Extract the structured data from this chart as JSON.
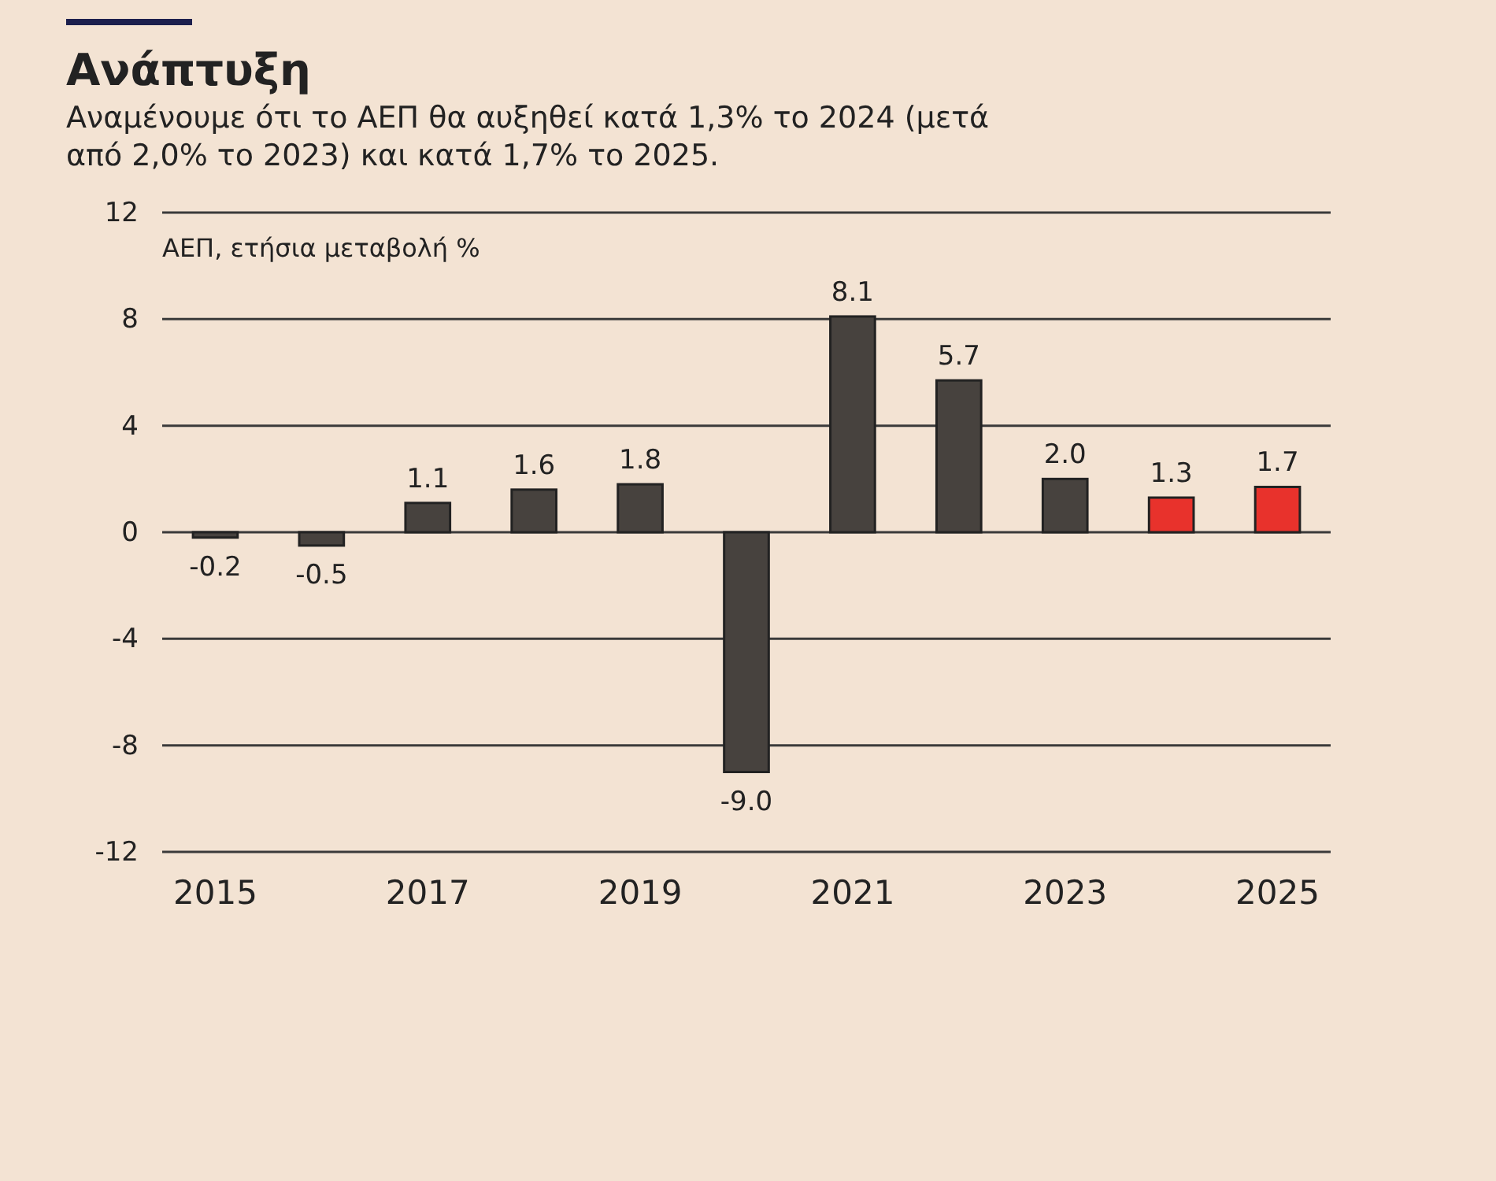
{
  "chart_data": {
    "type": "bar",
    "title": "Ανάπτυξη",
    "subtitle": "Αναμένουμε ότι το ΑΕΠ θα αυξηθεί κατά 1,3% το 2024 (μετά από 2,0% το 2023) και κατά 1,7% το 2025.",
    "ylabel": "ΑΕΠ, ετήσια μεταβολή %",
    "categories": [
      "2015",
      null,
      "2017",
      null,
      "2019",
      null,
      "2021",
      null,
      "2023",
      null,
      "2025"
    ],
    "values": [
      -0.2,
      -0.5,
      1.1,
      1.6,
      1.8,
      -9.0,
      8.1,
      5.7,
      2.0,
      1.3,
      1.7
    ],
    "colors": [
      "#47423e",
      "#47423e",
      "#47423e",
      "#47423e",
      "#47423e",
      "#47423e",
      "#47423e",
      "#47423e",
      "#47423e",
      "#e8322c",
      "#e8322c"
    ],
    "value_labels": [
      "-0.2",
      "-0.5",
      "1.1",
      "1.6",
      "1.8",
      "-9.0",
      "8.1",
      "5.7",
      "2.0",
      "1.3",
      "1.7"
    ],
    "ylim": [
      -12,
      12
    ],
    "yticks": [
      -12,
      -8,
      -4,
      0,
      4,
      8,
      12
    ],
    "grid": "y"
  }
}
